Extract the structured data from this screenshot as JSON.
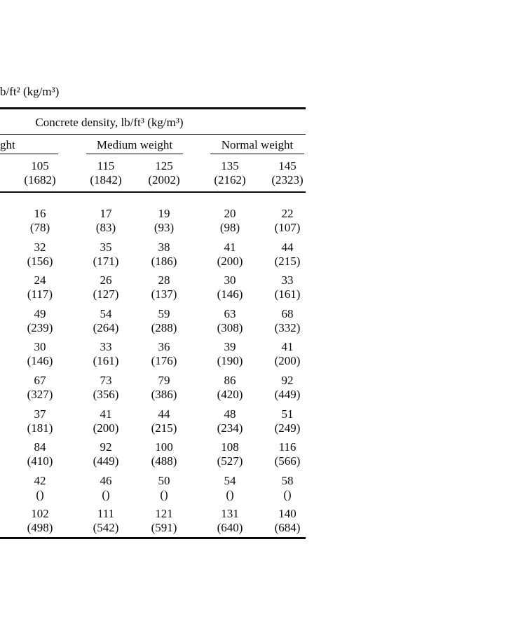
{
  "page": {
    "caption_fragment": "b/ft² (kg/m³)"
  },
  "table": {
    "title": "Concrete density, lb/ft³ (kg/m³)",
    "group_headers": [
      {
        "label": "ght"
      },
      {
        "label": "Medium weight"
      },
      {
        "label": "Normal weight"
      }
    ],
    "column_headers": [
      {
        "density": "105",
        "metric": "(1682)"
      },
      {
        "density": "115",
        "metric": "(1842)"
      },
      {
        "density": "125",
        "metric": "(2002)"
      },
      {
        "density": "135",
        "metric": "(2162)"
      },
      {
        "density": "145",
        "metric": "(2323)"
      }
    ],
    "rows": [
      {
        "cells": [
          {
            "main": "16",
            "paren": "(78)"
          },
          {
            "main": "17",
            "paren": "(83)"
          },
          {
            "main": "19",
            "paren": "(93)"
          },
          {
            "main": "20",
            "paren": "(98)"
          },
          {
            "main": "22",
            "paren": "(107)"
          }
        ]
      },
      {
        "cells": [
          {
            "main": "32",
            "paren": "(156)"
          },
          {
            "main": "35",
            "paren": "(171)"
          },
          {
            "main": "38",
            "paren": "(186)"
          },
          {
            "main": "41",
            "paren": "(200)"
          },
          {
            "main": "44",
            "paren": "(215)"
          }
        ]
      },
      {
        "cells": [
          {
            "main": "24",
            "paren": "(117)"
          },
          {
            "main": "26",
            "paren": "(127)"
          },
          {
            "main": "28",
            "paren": "(137)"
          },
          {
            "main": "30",
            "paren": "(146)"
          },
          {
            "main": "33",
            "paren": "(161)"
          }
        ]
      },
      {
        "cells": [
          {
            "main": "49",
            "paren": "(239)"
          },
          {
            "main": "54",
            "paren": "(264)"
          },
          {
            "main": "59",
            "paren": "(288)"
          },
          {
            "main": "63",
            "paren": "(308)"
          },
          {
            "main": "68",
            "paren": "(332)"
          }
        ]
      },
      {
        "cells": [
          {
            "main": "30",
            "paren": "(146)"
          },
          {
            "main": "33",
            "paren": "(161)"
          },
          {
            "main": "36",
            "paren": "(176)"
          },
          {
            "main": "39",
            "paren": "(190)"
          },
          {
            "main": "41",
            "paren": "(200)"
          }
        ]
      },
      {
        "cells": [
          {
            "main": "67",
            "paren": "(327)"
          },
          {
            "main": "73",
            "paren": "(356)"
          },
          {
            "main": "79",
            "paren": "(386)"
          },
          {
            "main": "86",
            "paren": "(420)"
          },
          {
            "main": "92",
            "paren": "(449)"
          }
        ]
      },
      {
        "cells": [
          {
            "main": "37",
            "paren": "(181)"
          },
          {
            "main": "41",
            "paren": "(200)"
          },
          {
            "main": "44",
            "paren": "(215)"
          },
          {
            "main": "48",
            "paren": "(234)"
          },
          {
            "main": "51",
            "paren": "(249)"
          }
        ]
      },
      {
        "cells": [
          {
            "main": "84",
            "paren": "(410)"
          },
          {
            "main": "92",
            "paren": "(449)"
          },
          {
            "main": "100",
            "paren": "(488)"
          },
          {
            "main": "108",
            "paren": "(527)"
          },
          {
            "main": "116",
            "paren": "(566)"
          }
        ]
      },
      {
        "cells": [
          {
            "main": "42",
            "paren": "()"
          },
          {
            "main": "46",
            "paren": "()"
          },
          {
            "main": "50",
            "paren": "()"
          },
          {
            "main": "54",
            "paren": "()"
          },
          {
            "main": "58",
            "paren": "()"
          }
        ]
      },
      {
        "cells": [
          {
            "main": "102",
            "paren": "(498)"
          },
          {
            "main": "111",
            "paren": "(542)"
          },
          {
            "main": "121",
            "paren": "(591)"
          },
          {
            "main": "131",
            "paren": "(640)"
          },
          {
            "main": "140",
            "paren": "(684)"
          }
        ]
      }
    ]
  }
}
